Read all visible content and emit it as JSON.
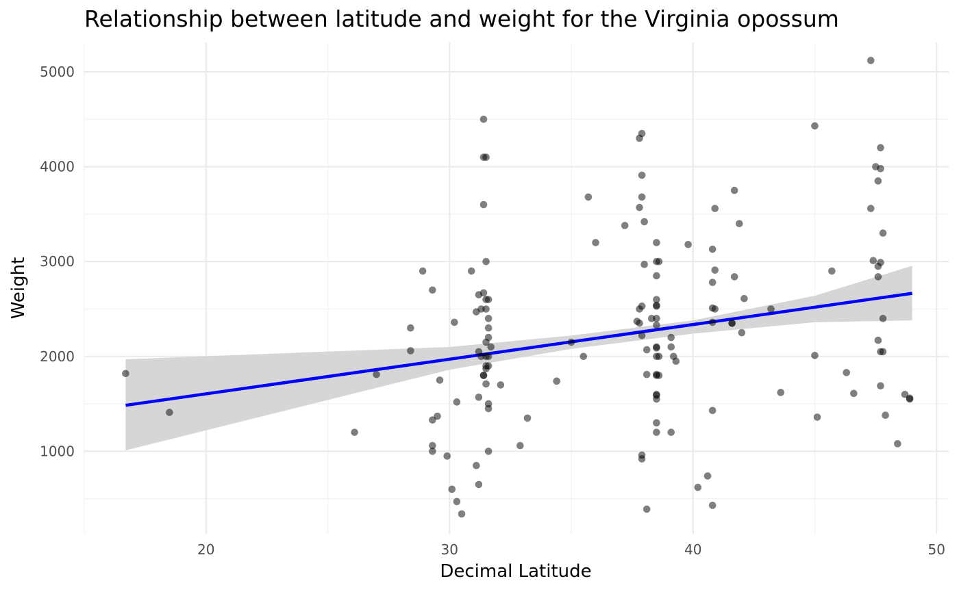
{
  "chart_data": {
    "type": "scatter",
    "title": "Relationship between latitude and weight for the Virginia opossum",
    "xlabel": "Decimal Latitude",
    "ylabel": "Weight",
    "xlim": [
      15,
      50.5
    ],
    "ylim": [
      130,
      5310
    ],
    "x_ticks": [
      20,
      30,
      40,
      50
    ],
    "y_ticks": [
      1000,
      2000,
      3000,
      4000,
      5000
    ],
    "x_minor_ticks": [
      15,
      25,
      35,
      45
    ],
    "y_minor_ticks": [
      500,
      1500,
      2500,
      3500,
      4500
    ],
    "grid": true,
    "point_color": "#000000",
    "point_opacity": 0.5,
    "trend_line": {
      "color": "#0000FF",
      "x": [
        16.7,
        49.0
      ],
      "y": [
        1485,
        2665
      ]
    },
    "confidence_band": {
      "color": "#d6d6d6",
      "x": [
        16.7,
        30,
        35,
        40,
        45,
        49.0
      ],
      "upper": [
        1970,
        2100,
        2220,
        2380,
        2640,
        2955
      ],
      "lower": [
        1010,
        1860,
        2080,
        2240,
        2360,
        2380
      ]
    },
    "points": [
      {
        "x": 16.7,
        "y": 1820
      },
      {
        "x": 18.5,
        "y": 1410
      },
      {
        "x": 26.1,
        "y": 1200
      },
      {
        "x": 27.0,
        "y": 1810
      },
      {
        "x": 28.4,
        "y": 2300
      },
      {
        "x": 28.4,
        "y": 2060
      },
      {
        "x": 28.9,
        "y": 2900
      },
      {
        "x": 29.3,
        "y": 2700
      },
      {
        "x": 29.3,
        "y": 1330
      },
      {
        "x": 29.5,
        "y": 1370
      },
      {
        "x": 29.6,
        "y": 1750
      },
      {
        "x": 29.3,
        "y": 1060
      },
      {
        "x": 29.3,
        "y": 1000
      },
      {
        "x": 29.9,
        "y": 950
      },
      {
        "x": 30.1,
        "y": 600
      },
      {
        "x": 30.3,
        "y": 470
      },
      {
        "x": 30.5,
        "y": 340
      },
      {
        "x": 30.2,
        "y": 2360
      },
      {
        "x": 30.3,
        "y": 1520
      },
      {
        "x": 30.9,
        "y": 2900
      },
      {
        "x": 31.1,
        "y": 2470
      },
      {
        "x": 31.2,
        "y": 2650
      },
      {
        "x": 31.3,
        "y": 2500
      },
      {
        "x": 31.2,
        "y": 2050
      },
      {
        "x": 31.3,
        "y": 2000
      },
      {
        "x": 31.2,
        "y": 1570
      },
      {
        "x": 31.1,
        "y": 850
      },
      {
        "x": 31.2,
        "y": 650
      },
      {
        "x": 31.4,
        "y": 4500
      },
      {
        "x": 31.4,
        "y": 4100
      },
      {
        "x": 31.5,
        "y": 4100
      },
      {
        "x": 31.4,
        "y": 3600
      },
      {
        "x": 31.5,
        "y": 3000
      },
      {
        "x": 31.4,
        "y": 2670
      },
      {
        "x": 31.5,
        "y": 2600
      },
      {
        "x": 31.6,
        "y": 2600
      },
      {
        "x": 31.5,
        "y": 2500
      },
      {
        "x": 31.6,
        "y": 2400
      },
      {
        "x": 31.6,
        "y": 2300
      },
      {
        "x": 31.6,
        "y": 2200
      },
      {
        "x": 31.5,
        "y": 2150
      },
      {
        "x": 31.7,
        "y": 2100
      },
      {
        "x": 31.5,
        "y": 2000
      },
      {
        "x": 31.6,
        "y": 2000
      },
      {
        "x": 31.5,
        "y": 1900
      },
      {
        "x": 31.6,
        "y": 1900
      },
      {
        "x": 31.5,
        "y": 1870
      },
      {
        "x": 31.4,
        "y": 1800
      },
      {
        "x": 31.4,
        "y": 1800
      },
      {
        "x": 31.5,
        "y": 1710
      },
      {
        "x": 31.6,
        "y": 1500
      },
      {
        "x": 31.6,
        "y": 1450
      },
      {
        "x": 31.6,
        "y": 1000
      },
      {
        "x": 32.1,
        "y": 1700
      },
      {
        "x": 32.9,
        "y": 1060
      },
      {
        "x": 33.2,
        "y": 1350
      },
      {
        "x": 34.4,
        "y": 1740
      },
      {
        "x": 35.0,
        "y": 2150
      },
      {
        "x": 35.5,
        "y": 2000
      },
      {
        "x": 35.7,
        "y": 3680
      },
      {
        "x": 36.0,
        "y": 3200
      },
      {
        "x": 37.2,
        "y": 3380
      },
      {
        "x": 37.8,
        "y": 4300
      },
      {
        "x": 37.9,
        "y": 4350
      },
      {
        "x": 37.9,
        "y": 3910
      },
      {
        "x": 37.9,
        "y": 3680
      },
      {
        "x": 37.8,
        "y": 3570
      },
      {
        "x": 38.0,
        "y": 3420
      },
      {
        "x": 38.0,
        "y": 2970
      },
      {
        "x": 37.9,
        "y": 2530
      },
      {
        "x": 37.8,
        "y": 2500
      },
      {
        "x": 37.7,
        "y": 2370
      },
      {
        "x": 37.8,
        "y": 2350
      },
      {
        "x": 37.9,
        "y": 2220
      },
      {
        "x": 38.1,
        "y": 2070
      },
      {
        "x": 38.1,
        "y": 1810
      },
      {
        "x": 37.9,
        "y": 960
      },
      {
        "x": 37.9,
        "y": 920
      },
      {
        "x": 38.1,
        "y": 390
      },
      {
        "x": 38.5,
        "y": 3200
      },
      {
        "x": 38.5,
        "y": 3000
      },
      {
        "x": 38.6,
        "y": 3000
      },
      {
        "x": 38.5,
        "y": 2850
      },
      {
        "x": 38.5,
        "y": 2600
      },
      {
        "x": 38.5,
        "y": 2540
      },
      {
        "x": 38.5,
        "y": 2530
      },
      {
        "x": 38.3,
        "y": 2400
      },
      {
        "x": 38.5,
        "y": 2400
      },
      {
        "x": 38.5,
        "y": 2330
      },
      {
        "x": 38.5,
        "y": 2100
      },
      {
        "x": 38.5,
        "y": 2090
      },
      {
        "x": 38.5,
        "y": 2000
      },
      {
        "x": 38.6,
        "y": 2000
      },
      {
        "x": 38.5,
        "y": 1800
      },
      {
        "x": 38.6,
        "y": 1800
      },
      {
        "x": 38.5,
        "y": 1810
      },
      {
        "x": 38.5,
        "y": 1600
      },
      {
        "x": 38.5,
        "y": 1590
      },
      {
        "x": 38.5,
        "y": 1550
      },
      {
        "x": 38.5,
        "y": 1300
      },
      {
        "x": 38.5,
        "y": 1200
      },
      {
        "x": 39.1,
        "y": 2200
      },
      {
        "x": 39.1,
        "y": 2100
      },
      {
        "x": 39.2,
        "y": 2000
      },
      {
        "x": 39.3,
        "y": 1950
      },
      {
        "x": 39.1,
        "y": 1200
      },
      {
        "x": 39.8,
        "y": 3180
      },
      {
        "x": 40.2,
        "y": 620
      },
      {
        "x": 40.6,
        "y": 740
      },
      {
        "x": 40.8,
        "y": 3130
      },
      {
        "x": 40.8,
        "y": 2780
      },
      {
        "x": 40.8,
        "y": 2510
      },
      {
        "x": 40.9,
        "y": 2500
      },
      {
        "x": 40.8,
        "y": 2360
      },
      {
        "x": 40.8,
        "y": 1430
      },
      {
        "x": 40.8,
        "y": 430
      },
      {
        "x": 40.9,
        "y": 3560
      },
      {
        "x": 40.9,
        "y": 2910
      },
      {
        "x": 41.6,
        "y": 2350
      },
      {
        "x": 41.6,
        "y": 2350
      },
      {
        "x": 41.7,
        "y": 3750
      },
      {
        "x": 41.7,
        "y": 2840
      },
      {
        "x": 41.9,
        "y": 3400
      },
      {
        "x": 42.0,
        "y": 2250
      },
      {
        "x": 42.1,
        "y": 2610
      },
      {
        "x": 43.2,
        "y": 2500
      },
      {
        "x": 43.6,
        "y": 1620
      },
      {
        "x": 45.0,
        "y": 4430
      },
      {
        "x": 45.0,
        "y": 2010
      },
      {
        "x": 45.1,
        "y": 1360
      },
      {
        "x": 45.7,
        "y": 2900
      },
      {
        "x": 46.3,
        "y": 1830
      },
      {
        "x": 46.6,
        "y": 1610
      },
      {
        "x": 47.3,
        "y": 5120
      },
      {
        "x": 47.3,
        "y": 3560
      },
      {
        "x": 47.4,
        "y": 3010
      },
      {
        "x": 47.5,
        "y": 4000
      },
      {
        "x": 47.6,
        "y": 3850
      },
      {
        "x": 47.7,
        "y": 4200
      },
      {
        "x": 47.7,
        "y": 3980
      },
      {
        "x": 47.7,
        "y": 2990
      },
      {
        "x": 47.6,
        "y": 2950
      },
      {
        "x": 47.6,
        "y": 2840
      },
      {
        "x": 47.8,
        "y": 3300
      },
      {
        "x": 47.6,
        "y": 2170
      },
      {
        "x": 47.7,
        "y": 2050
      },
      {
        "x": 47.8,
        "y": 2050
      },
      {
        "x": 47.8,
        "y": 2400
      },
      {
        "x": 47.7,
        "y": 1690
      },
      {
        "x": 47.9,
        "y": 1380
      },
      {
        "x": 48.4,
        "y": 1080
      },
      {
        "x": 48.7,
        "y": 1600
      },
      {
        "x": 48.9,
        "y": 1550
      },
      {
        "x": 48.9,
        "y": 1560
      }
    ]
  }
}
